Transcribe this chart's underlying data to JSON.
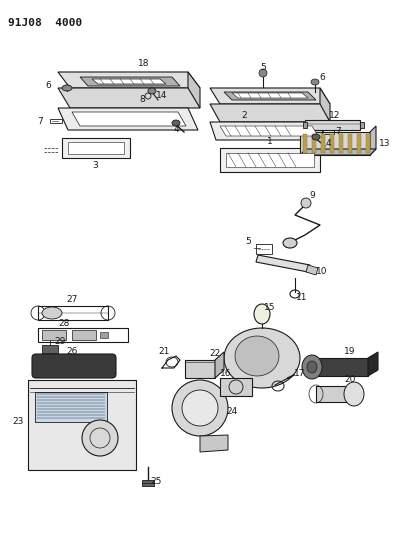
{
  "title": "91J08 4000",
  "bg": "#ffffff",
  "lc": "#1a1a1a",
  "figsize": [
    4.12,
    5.33
  ],
  "dpi": 100
}
